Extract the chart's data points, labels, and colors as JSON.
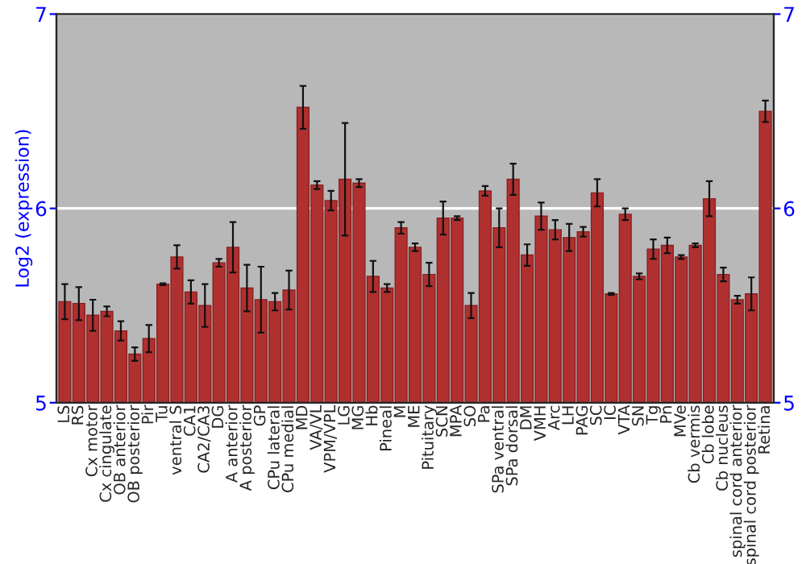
{
  "chart_data": {
    "type": "bar",
    "ylabel": "Log2 (expression)",
    "categories": [
      "LS",
      "RS",
      "Cx motor",
      "Cx cingulate",
      "OB anterior",
      "OB posterior",
      "Pir",
      "Tu",
      "ventral S",
      "CA1",
      "CA2/CA3",
      "DG",
      "A anterior",
      "A posterior",
      "GP",
      "CPu lateral",
      "CPu medial",
      "MD",
      "VA/VL",
      "VPM/VPL",
      "LG",
      "MG",
      "Hb",
      "Pineal",
      "M",
      "ME",
      "Pituitary",
      "SCN",
      "MPA",
      "SO",
      "Pa",
      "SPa ventral",
      "SPa dorsal",
      "DM",
      "VMH",
      "Arc",
      "LH",
      "PAG",
      "SC",
      "IC",
      "VTA",
      "SN",
      "Tg",
      "Pn",
      "MVe",
      "Cb vermis",
      "Cb lobe",
      "Cb nucleus",
      "spinal cord anterior",
      "spinal cord posterior",
      "Retina"
    ],
    "values": [
      5.52,
      5.51,
      5.45,
      5.47,
      5.37,
      5.25,
      5.33,
      5.61,
      5.75,
      5.57,
      5.5,
      5.72,
      5.8,
      5.59,
      5.53,
      5.52,
      5.58,
      6.52,
      6.12,
      6.04,
      6.15,
      6.13,
      5.65,
      5.59,
      5.9,
      5.8,
      5.66,
      5.95,
      5.95,
      5.5,
      6.09,
      5.9,
      6.15,
      5.76,
      5.96,
      5.89,
      5.85,
      5.88,
      6.08,
      5.56,
      5.97,
      5.65,
      5.79,
      5.81,
      5.75,
      5.81,
      6.05,
      5.66,
      5.53,
      5.56,
      6.5
    ],
    "errors": [
      0.09,
      0.085,
      0.08,
      0.025,
      0.05,
      0.035,
      0.07,
      0.005,
      0.06,
      0.06,
      0.11,
      0.02,
      0.13,
      0.12,
      0.17,
      0.045,
      0.1,
      0.11,
      0.02,
      0.05,
      0.29,
      0.02,
      0.08,
      0.02,
      0.03,
      0.02,
      0.06,
      0.085,
      0.01,
      0.065,
      0.025,
      0.1,
      0.08,
      0.055,
      0.07,
      0.05,
      0.07,
      0.025,
      0.07,
      0.005,
      0.03,
      0.015,
      0.05,
      0.04,
      0.01,
      0.01,
      0.09,
      0.035,
      0.02,
      0.085,
      0.055
    ],
    "color": "#b03030",
    "ylim": [
      5,
      7
    ],
    "yticks": [
      5,
      6,
      7
    ],
    "y2lim": [
      5,
      7
    ],
    "y2ticks": [
      5,
      6,
      7
    ],
    "grid": "y",
    "legend": false
  }
}
